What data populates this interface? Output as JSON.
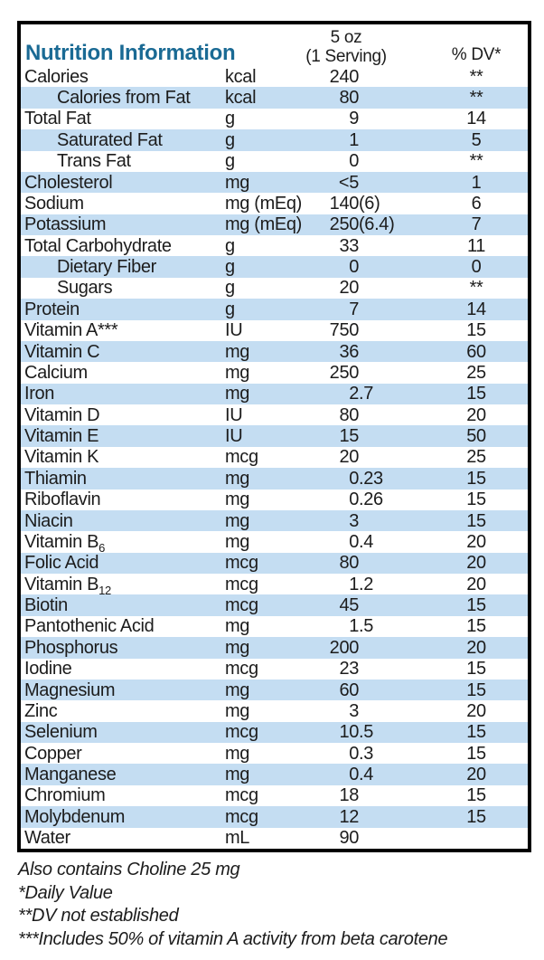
{
  "header": {
    "title": "Nutrition Information",
    "serving_line1": "5 oz",
    "serving_line2": "(1 Serving)",
    "dv_label": "% DV*"
  },
  "colors": {
    "accent_teal": "#1a6a94",
    "row_blue": "#c4ddf2",
    "border_black": "#000000",
    "text_black": "#1c1c1c"
  },
  "table": {
    "rows": [
      {
        "name": "Calories",
        "unit": "kcal",
        "amount": "240",
        "dv": "**",
        "indent": false
      },
      {
        "name": "Calories from Fat",
        "unit": "kcal",
        "amount": "80",
        "dv": "**",
        "indent": true
      },
      {
        "name": "Total Fat",
        "unit": "g",
        "amount": "9",
        "dv": "14",
        "indent": false
      },
      {
        "name": "Saturated Fat",
        "unit": "g",
        "amount": "1",
        "dv": "5",
        "indent": true
      },
      {
        "name": "Trans Fat",
        "unit": "g",
        "amount": "0",
        "dv": "**",
        "indent": true
      },
      {
        "name": "Cholesterol",
        "unit": "mg",
        "amount": "<5",
        "dv": "1",
        "indent": false
      },
      {
        "name": "Sodium",
        "unit": "mg (mEq)",
        "amount": "140 (6)",
        "dv": "6",
        "indent": false
      },
      {
        "name": "Potassium",
        "unit": "mg (mEq)",
        "amount": "250 (6.4)",
        "dv": "7",
        "indent": false
      },
      {
        "name": "Total Carbohydrate",
        "unit": "g",
        "amount": "33",
        "dv": "11",
        "indent": false
      },
      {
        "name": "Dietary Fiber",
        "unit": "g",
        "amount": "0",
        "dv": "0",
        "indent": true
      },
      {
        "name": "Sugars",
        "unit": "g",
        "amount": "20",
        "dv": "**",
        "indent": true
      },
      {
        "name": "Protein",
        "unit": "g",
        "amount": "7",
        "dv": "14",
        "indent": false
      },
      {
        "name": "Vitamin A***",
        "unit": "IU",
        "amount": "750",
        "dv": "15",
        "indent": false
      },
      {
        "name": "Vitamin C",
        "unit": "mg",
        "amount": "36",
        "dv": "60",
        "indent": false
      },
      {
        "name": "Calcium",
        "unit": "mg",
        "amount": "250",
        "dv": "25",
        "indent": false
      },
      {
        "name": "Iron",
        "unit": "mg",
        "amount": "2.7",
        "dv": "15",
        "indent": false
      },
      {
        "name": "Vitamin D",
        "unit": "IU",
        "amount": "80",
        "dv": "20",
        "indent": false
      },
      {
        "name": "Vitamin E",
        "unit": "IU",
        "amount": "15",
        "dv": "50",
        "indent": false
      },
      {
        "name": "Vitamin K",
        "unit": "mcg",
        "amount": "20",
        "dv": "25",
        "indent": false
      },
      {
        "name": "Thiamin",
        "unit": "mg",
        "amount": "0.23",
        "dv": "15",
        "indent": false
      },
      {
        "name": "Riboflavin",
        "unit": "mg",
        "amount": "0.26",
        "dv": "15",
        "indent": false
      },
      {
        "name": "Niacin",
        "unit": "mg",
        "amount": "3",
        "dv": "15",
        "indent": false
      },
      {
        "name": "Vitamin B",
        "sub": "6",
        "unit": "mg",
        "amount": "0.4",
        "dv": "20",
        "indent": false
      },
      {
        "name": "Folic Acid",
        "unit": "mcg",
        "amount": "80",
        "dv": "20",
        "indent": false
      },
      {
        "name": "Vitamin B",
        "sub": "12",
        "unit": "mcg",
        "amount": "1.2",
        "dv": "20",
        "indent": false
      },
      {
        "name": "Biotin",
        "unit": "mcg",
        "amount": "45",
        "dv": "15",
        "indent": false
      },
      {
        "name": "Pantothenic Acid",
        "unit": "mg",
        "amount": "1.5",
        "dv": "15",
        "indent": false
      },
      {
        "name": "Phosphorus",
        "unit": "mg",
        "amount": "200",
        "dv": "20",
        "indent": false
      },
      {
        "name": "Iodine",
        "unit": "mcg",
        "amount": "23",
        "dv": "15",
        "indent": false
      },
      {
        "name": "Magnesium",
        "unit": "mg",
        "amount": "60",
        "dv": "15",
        "indent": false
      },
      {
        "name": "Zinc",
        "unit": "mg",
        "amount": "3",
        "dv": "20",
        "indent": false
      },
      {
        "name": "Selenium",
        "unit": "mcg",
        "amount": "10.5",
        "dv": "15",
        "indent": false
      },
      {
        "name": "Copper",
        "unit": "mg",
        "amount": "0.3",
        "dv": "15",
        "indent": false
      },
      {
        "name": "Manganese",
        "unit": "mg",
        "amount": "0.4",
        "dv": "20",
        "indent": false
      },
      {
        "name": "Chromium",
        "unit": "mcg",
        "amount": "18",
        "dv": "15",
        "indent": false
      },
      {
        "name": "Molybdenum",
        "unit": "mcg",
        "amount": "12",
        "dv": "15",
        "indent": false
      },
      {
        "name": "Water",
        "unit": "mL",
        "amount": "90",
        "dv": "",
        "indent": false
      }
    ]
  },
  "footnotes": [
    "Also contains Choline 25 mg",
    "*Daily Value",
    "**DV not established",
    "***Includes 50% of vitamin A activity from beta carotene"
  ]
}
